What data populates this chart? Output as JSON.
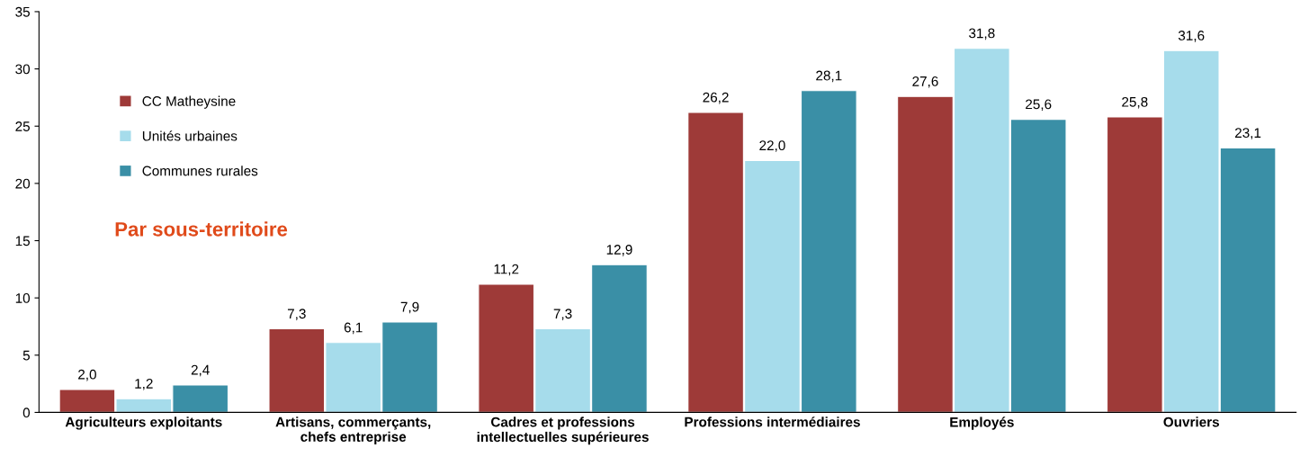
{
  "chart_data": {
    "type": "bar",
    "categories": [
      "Agriculteurs exploitants",
      "Artisans, commerçants,\nchefs entreprise",
      "Cadres et professions\nintellectuelles supérieures",
      "Professions intermédiaires",
      "Employés",
      "Ouvriers"
    ],
    "series": [
      {
        "name": "CC Matheysine",
        "color": "#9e3a38",
        "values": [
          2.0,
          7.3,
          11.2,
          26.2,
          27.6,
          25.8
        ],
        "value_labels": [
          "2,0",
          "7,3",
          "11,2",
          "26,2",
          "27,6",
          "25,8"
        ]
      },
      {
        "name": "Unités urbaines",
        "color": "#a6dceb",
        "values": [
          1.2,
          6.1,
          7.3,
          22.0,
          31.8,
          31.6
        ],
        "value_labels": [
          "1,2",
          "6,1",
          "7,3",
          "22,0",
          "31,8",
          "31,6"
        ]
      },
      {
        "name": "Communes rurales",
        "color": "#3a8fa6",
        "values": [
          2.4,
          7.9,
          12.9,
          28.1,
          25.6,
          23.1
        ],
        "value_labels": [
          "2,4",
          "7,9",
          "12,9",
          "28,1",
          "25,6",
          "23,1"
        ]
      }
    ],
    "annotations": [
      "Par sous-territoire"
    ],
    "ylim": [
      0,
      35
    ],
    "yticks": [
      0,
      5,
      10,
      15,
      20,
      25,
      30,
      35
    ],
    "grid": false,
    "legend": "top left"
  }
}
